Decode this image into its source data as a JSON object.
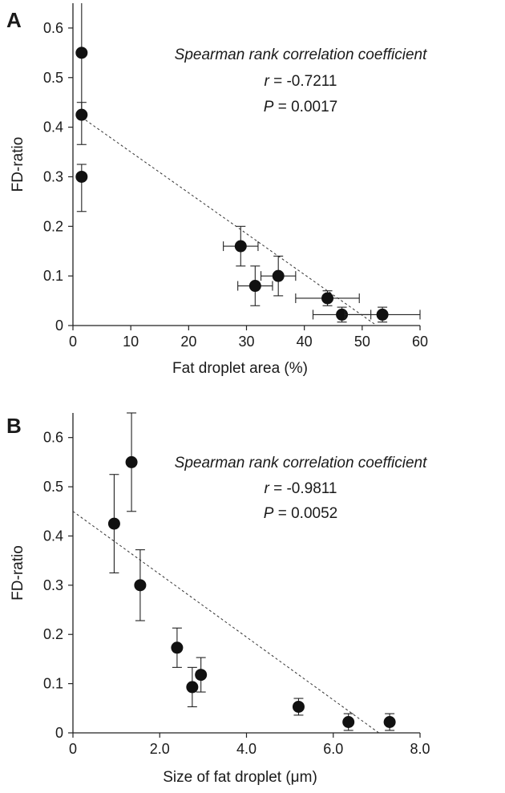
{
  "chart_data": [
    {
      "type": "scatter",
      "panel": "A",
      "xlabel": "Fat droplet area (%)",
      "ylabel": "FD-ratio",
      "xlim": [
        0,
        60
      ],
      "ylim": [
        0,
        0.65
      ],
      "xticks": [
        "0",
        "10",
        "20",
        "30",
        "40",
        "50",
        "60"
      ],
      "yticks": [
        "0",
        "0.1",
        "0.2",
        "0.3",
        "0.4",
        "0.5",
        "0.6"
      ],
      "annotation": {
        "title": "Spearman rank correlation coefficient",
        "r_symbol": "r",
        "r_value": " = -0.7211",
        "p_symbol": "P",
        "p_value": " = 0.0017"
      },
      "points": [
        {
          "x": 1.5,
          "y": 0.55,
          "yerr_low": 0.42,
          "yerr_high": 0.66
        },
        {
          "x": 1.5,
          "y": 0.425,
          "yerr_low": 0.365,
          "yerr_high": 0.45
        },
        {
          "x": 1.5,
          "y": 0.3,
          "yerr_low": 0.23,
          "yerr_high": 0.325
        },
        {
          "x": 29.0,
          "y": 0.16,
          "xerr": 3.0,
          "yerr": 0.04
        },
        {
          "x": 31.5,
          "y": 0.08,
          "xerr": 3.0,
          "yerr": 0.04
        },
        {
          "x": 35.5,
          "y": 0.1,
          "xerr": 3.0,
          "yerr": 0.04
        },
        {
          "x": 44.0,
          "y": 0.055,
          "xerr": 5.5,
          "yerr": 0.015
        },
        {
          "x": 46.5,
          "y": 0.022,
          "xerr": 5.0,
          "yerr": 0.015
        },
        {
          "x": 53.5,
          "y": 0.022,
          "xerr": 6.5,
          "yerr": 0.015
        }
      ],
      "fit_line": {
        "x1": 1.5,
        "y1": 0.42,
        "x2": 52.5,
        "y2": 0.0
      }
    },
    {
      "type": "scatter",
      "panel": "B",
      "xlabel_pre": "Size of fat droplet (",
      "xlabel_unit": "μm",
      "xlabel_post": ")",
      "ylabel": "FD-ratio",
      "xlim": [
        0,
        8.0
      ],
      "ylim": [
        0,
        0.65
      ],
      "xticks": [
        "0",
        "2.0",
        "4.0",
        "6.0",
        "8.0"
      ],
      "yticks": [
        "0",
        "0.1",
        "0.2",
        "0.3",
        "0.4",
        "0.5",
        "0.6"
      ],
      "annotation": {
        "title": "Spearman rank correlation coefficient",
        "r_symbol": "r",
        "r_value": " = -0.9811",
        "p_symbol": "P",
        "p_value": " = 0.0052"
      },
      "points": [
        {
          "x": 0.95,
          "y": 0.425,
          "yerr": 0.1
        },
        {
          "x": 1.35,
          "y": 0.55,
          "yerr": 0.1
        },
        {
          "x": 1.55,
          "y": 0.3,
          "yerr": 0.072
        },
        {
          "x": 2.4,
          "y": 0.173,
          "yerr": 0.04
        },
        {
          "x": 2.75,
          "y": 0.093,
          "yerr": 0.04
        },
        {
          "x": 2.95,
          "y": 0.118,
          "yerr": 0.035
        },
        {
          "x": 5.2,
          "y": 0.053,
          "yerr": 0.017
        },
        {
          "x": 6.35,
          "y": 0.022,
          "yerr": 0.017
        },
        {
          "x": 7.3,
          "y": 0.022,
          "yerr": 0.017
        }
      ],
      "fit_line": {
        "x1": 0.0,
        "y1": 0.45,
        "x2": 7.05,
        "y2": 0.0
      }
    }
  ]
}
